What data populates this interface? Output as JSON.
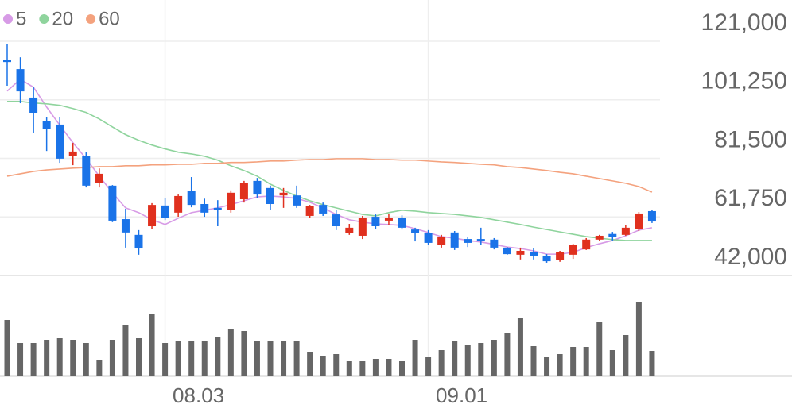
{
  "chart_data": {
    "type": "candlestick",
    "categories": [
      null,
      null,
      null,
      null,
      null,
      null,
      null,
      null,
      null,
      null,
      null,
      null,
      "08.03",
      null,
      null,
      null,
      null,
      null,
      null,
      null,
      null,
      null,
      null,
      null,
      null,
      null,
      null,
      null,
      null,
      null,
      null,
      null,
      "09.01",
      null,
      null,
      null,
      null,
      null,
      null,
      null,
      null,
      null,
      null,
      null,
      null,
      null,
      null,
      null,
      null,
      null
    ],
    "open": [
      114800,
      111600,
      102000,
      94200,
      92900,
      82200,
      82200,
      73300,
      72300,
      61000,
      55700,
      58600,
      65600,
      63200,
      70400,
      66100,
      64800,
      64200,
      67700,
      73900,
      71500,
      69000,
      69000,
      62100,
      65800,
      62600,
      56200,
      55400,
      61800,
      60500,
      61500,
      57500,
      56200,
      52400,
      56500,
      54300,
      54300,
      54100,
      51400,
      49000,
      50000,
      48700,
      47100,
      49000,
      50800,
      54100,
      56000,
      55700,
      57800,
      63700
    ],
    "high": [
      120000,
      115600,
      105500,
      95300,
      95300,
      86700,
      83500,
      78100,
      72500,
      64500,
      57300,
      66400,
      68200,
      69300,
      75200,
      67900,
      67400,
      70700,
      73900,
      74900,
      72300,
      71500,
      72300,
      65800,
      66600,
      64000,
      59400,
      62100,
      62600,
      62900,
      62300,
      58100,
      57300,
      55700,
      57000,
      55100,
      58100,
      54600,
      51600,
      51400,
      51100,
      49200,
      50300,
      52700,
      54600,
      55700,
      56700,
      58900,
      63400,
      64000
    ],
    "low": [
      106000,
      100100,
      90000,
      84000,
      80000,
      79200,
      71700,
      71700,
      60000,
      51400,
      49000,
      57800,
      60700,
      61800,
      65000,
      61800,
      58600,
      63200,
      66600,
      68200,
      64000,
      64800,
      64800,
      61300,
      62100,
      57300,
      55700,
      54300,
      57800,
      59000,
      57500,
      53500,
      52400,
      51400,
      50600,
      51600,
      52200,
      50800,
      49000,
      47400,
      47400,
      46300,
      46600,
      47600,
      50600,
      53800,
      53800,
      55400,
      57000,
      59700
    ],
    "close": [
      114000,
      104100,
      96900,
      91300,
      81400,
      83800,
      72300,
      76300,
      60500,
      56500,
      51100,
      65800,
      61300,
      68800,
      65800,
      63200,
      64000,
      69900,
      73300,
      69300,
      66100,
      69900,
      65600,
      65300,
      62900,
      58600,
      58100,
      61300,
      58600,
      61500,
      58100,
      56200,
      53000,
      54900,
      51400,
      53000,
      54100,
      51400,
      49200,
      50300,
      48700,
      46800,
      49800,
      52200,
      54100,
      55400,
      54900,
      58100,
      62900,
      60200
    ],
    "up_color": "#e0301e",
    "down_color": "#1a73e8",
    "series": [
      {
        "name": "5",
        "color": "#d79be6",
        "values": [
          104200,
          108200,
          105500,
          98800,
          92700,
          86800,
          81400,
          75500,
          69900,
          64800,
          63200,
          60800,
          59200,
          61300,
          63200,
          64000,
          64800,
          65900,
          67200,
          68500,
          68800,
          68500,
          68000,
          66700,
          64800,
          62600,
          60800,
          60000,
          59400,
          59200,
          58900,
          57800,
          56500,
          55100,
          54600,
          53800,
          53300,
          52500,
          51600,
          51100,
          50300,
          49200,
          49200,
          49800,
          51400,
          52700,
          53800,
          55400,
          57300,
          58100
        ]
      },
      {
        "name": "20",
        "color": "#8fd49d",
        "values": [
          100700,
          100700,
          100200,
          99900,
          99400,
          98300,
          97000,
          94800,
          92100,
          89500,
          87600,
          86000,
          84700,
          83600,
          83000,
          82200,
          80900,
          79000,
          77400,
          75500,
          72800,
          70700,
          68800,
          67200,
          65900,
          64800,
          63700,
          62600,
          62100,
          63200,
          64000,
          63700,
          63200,
          62900,
          62600,
          62100,
          61600,
          60800,
          60000,
          59200,
          58300,
          57500,
          56700,
          55900,
          55100,
          54600,
          54100,
          53800,
          53800,
          53800
        ]
      },
      {
        "name": "60",
        "color": "#f4a27e",
        "values": [
          75500,
          76300,
          77100,
          77600,
          77900,
          78200,
          78400,
          78700,
          78700,
          79000,
          79000,
          79300,
          79300,
          79500,
          79500,
          79800,
          79800,
          80100,
          80100,
          80300,
          80600,
          80600,
          80900,
          81100,
          81100,
          81400,
          81400,
          81400,
          81100,
          81100,
          80900,
          80900,
          80600,
          80300,
          80100,
          79800,
          79500,
          79300,
          78700,
          78400,
          77900,
          77400,
          76800,
          76300,
          75500,
          74700,
          73900,
          73100,
          72000,
          70100
        ]
      }
    ],
    "volume": [
      71,
      42,
      42,
      46,
      48,
      46,
      42,
      20,
      46,
      65,
      48,
      79,
      42,
      44,
      44,
      44,
      50,
      59,
      57,
      44,
      44,
      44,
      44,
      31,
      26,
      28,
      19,
      19,
      22,
      22,
      19,
      46,
      24,
      33,
      44,
      39,
      42,
      46,
      55,
      73,
      38,
      24,
      28,
      37,
      37,
      69,
      33,
      52,
      93,
      32
    ],
    "volume_color": "#666666",
    "ylim": [
      42000,
      121000
    ],
    "yticks": [
      {
        "value": 121000,
        "label": "121,000"
      },
      {
        "value": 101250,
        "label": "101,250"
      },
      {
        "value": 81500,
        "label": "81,500"
      },
      {
        "value": 61750,
        "label": "61,750"
      },
      {
        "value": 42000,
        "label": "42,000"
      }
    ],
    "grid": true
  }
}
